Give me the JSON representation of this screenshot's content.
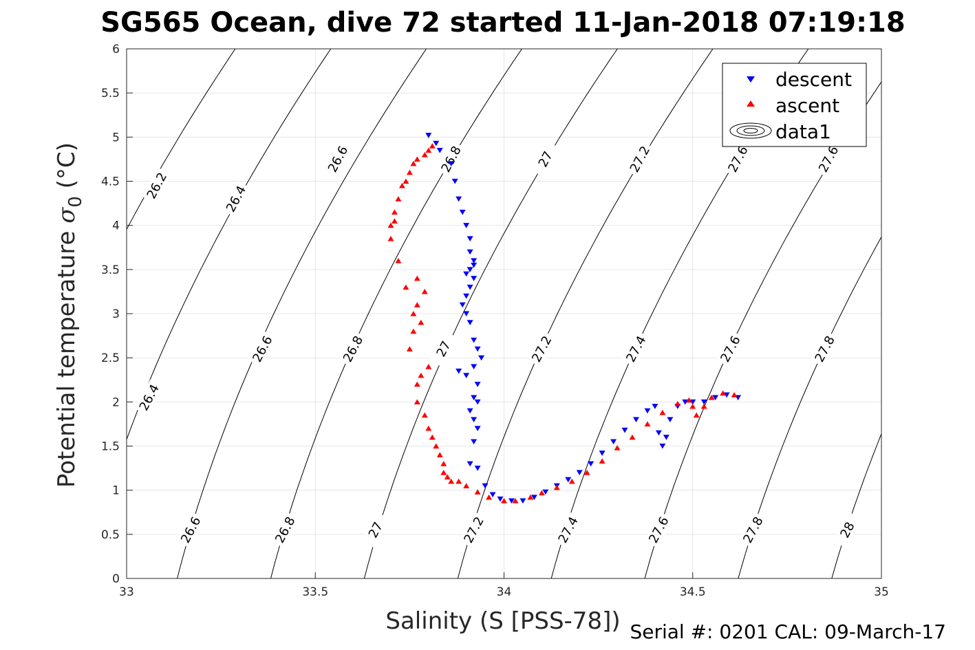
{
  "title": "SG565 Ocean, dive 72 started 11-Jan-2018 07:19:18",
  "footer": "Serial #: 0201  CAL: 09-March-17",
  "chart_data": {
    "type": "scatter",
    "xlabel": "Salinity (S [PSS-78])",
    "ylabel_main": "Potential temperature ",
    "ylabel_symbol": "σ",
    "ylabel_subscript": "0",
    "ylabel_unit": " (°C)",
    "xlim": [
      33,
      35
    ],
    "ylim": [
      0,
      6
    ],
    "xticks": [
      33,
      33.5,
      34,
      34.5,
      35
    ],
    "xtick_labels": [
      "33",
      "33.5",
      "34",
      "34.5",
      "35"
    ],
    "yticks": [
      0,
      0.5,
      1,
      1.5,
      2,
      2.5,
      3,
      3.5,
      4,
      4.5,
      5,
      5.5,
      6
    ],
    "ytick_labels": [
      "0",
      "0.5",
      "1",
      "1.5",
      "2",
      "2.5",
      "3",
      "3.5",
      "4",
      "4.5",
      "5",
      "5.5",
      "6"
    ],
    "grid": true,
    "legend_position": "top-right",
    "legend": [
      "descent",
      "ascent",
      "data1"
    ],
    "series": [
      {
        "name": "descent",
        "color": "#0000ff",
        "marker": "triangle-down",
        "x": [
          33.8,
          33.82,
          33.83,
          33.86,
          33.87,
          33.88,
          33.89,
          33.9,
          33.91,
          33.91,
          33.92,
          33.92,
          33.9,
          33.91,
          33.92,
          33.91,
          33.9,
          33.89,
          33.9,
          33.91,
          33.92,
          33.93,
          33.94,
          33.88,
          33.9,
          33.92,
          33.93,
          33.92,
          33.93,
          33.91,
          33.92,
          33.93,
          33.92,
          33.91,
          33.93,
          33.95,
          33.97,
          33.99,
          34.02,
          34.05,
          34.08,
          34.11,
          34.14,
          34.17,
          34.2,
          34.23,
          34.26,
          34.29,
          34.32,
          34.35,
          34.38,
          34.4,
          34.41,
          34.42,
          34.43,
          34.44,
          34.46,
          34.48,
          34.5,
          34.53,
          34.56,
          34.59,
          34.62
        ],
        "y": [
          5.02,
          4.93,
          4.85,
          4.7,
          4.5,
          4.3,
          4.15,
          4.0,
          3.85,
          3.7,
          3.6,
          3.55,
          3.45,
          3.5,
          3.4,
          3.3,
          3.2,
          3.1,
          3.0,
          2.9,
          2.7,
          2.6,
          2.5,
          2.35,
          2.3,
          2.4,
          2.2,
          2.05,
          2.0,
          1.9,
          1.8,
          1.7,
          1.55,
          1.3,
          1.25,
          1.05,
          0.95,
          0.9,
          0.88,
          0.88,
          0.92,
          0.98,
          1.05,
          1.12,
          1.2,
          1.3,
          1.42,
          1.55,
          1.68,
          1.8,
          1.9,
          1.95,
          1.65,
          1.5,
          1.6,
          1.8,
          1.95,
          2.0,
          2.0,
          2.0,
          2.05,
          2.08,
          2.05
        ]
      },
      {
        "name": "ascent",
        "color": "#ff0000",
        "marker": "triangle-up",
        "x": [
          33.81,
          33.8,
          33.79,
          33.77,
          33.76,
          33.75,
          33.74,
          33.73,
          33.72,
          33.71,
          33.71,
          33.7,
          33.7,
          33.72,
          33.74,
          33.76,
          33.77,
          33.78,
          33.76,
          33.75,
          33.77,
          33.79,
          33.8,
          33.78,
          33.77,
          33.77,
          33.79,
          33.8,
          33.81,
          33.82,
          33.83,
          33.84,
          33.84,
          33.85,
          33.86,
          33.88,
          33.9,
          33.93,
          33.96,
          34.0,
          34.03,
          34.07,
          34.1,
          34.14,
          34.18,
          34.22,
          34.26,
          34.3,
          34.34,
          34.38,
          34.42,
          34.46,
          34.49,
          34.5,
          34.51,
          34.53,
          34.55,
          34.58,
          34.61
        ],
        "y": [
          4.9,
          4.85,
          4.8,
          4.75,
          4.7,
          4.6,
          4.5,
          4.45,
          4.3,
          4.15,
          4.05,
          4.0,
          3.85,
          3.6,
          3.3,
          3.0,
          3.1,
          2.9,
          2.8,
          2.6,
          3.4,
          3.25,
          2.4,
          2.3,
          2.2,
          2.0,
          1.85,
          1.7,
          1.6,
          1.5,
          1.4,
          1.3,
          1.2,
          1.15,
          1.1,
          1.1,
          1.05,
          0.98,
          0.92,
          0.88,
          0.88,
          0.92,
          0.97,
          1.03,
          1.1,
          1.2,
          1.33,
          1.48,
          1.6,
          1.75,
          1.88,
          1.98,
          2.02,
          1.95,
          1.85,
          1.95,
          2.05,
          2.1,
          2.08
        ]
      }
    ],
    "contours": {
      "color": "#000000",
      "levels": [
        26.2,
        26.4,
        26.6,
        26.8,
        27.0,
        27.2,
        27.4,
        27.6,
        27.8,
        28.0
      ],
      "label_text": [
        "26.2",
        "26.4",
        "26.6",
        "26.8",
        "27",
        "27.2",
        "27.4",
        "27.6",
        "27.8",
        "28"
      ],
      "labels": [
        {
          "text": "26.2",
          "s": 33.08,
          "t": 4.45
        },
        {
          "text": "26.4",
          "s": 33.29,
          "t": 4.3
        },
        {
          "text": "26.4",
          "s": 33.06,
          "t": 2.05
        },
        {
          "text": "26.6",
          "s": 33.56,
          "t": 4.75
        },
        {
          "text": "26.6",
          "s": 33.36,
          "t": 2.6
        },
        {
          "text": "26.6",
          "s": 33.17,
          "t": 0.55
        },
        {
          "text": "26.8",
          "s": 33.86,
          "t": 4.75
        },
        {
          "text": "26.8",
          "s": 33.6,
          "t": 2.6
        },
        {
          "text": "26.8",
          "s": 33.42,
          "t": 0.55
        },
        {
          "text": "27",
          "s": 34.11,
          "t": 4.75
        },
        {
          "text": "27",
          "s": 33.84,
          "t": 2.6
        },
        {
          "text": "27",
          "s": 33.66,
          "t": 0.55
        },
        {
          "text": "27.2",
          "s": 34.36,
          "t": 4.75
        },
        {
          "text": "27.2",
          "s": 34.1,
          "t": 2.6
        },
        {
          "text": "27.2",
          "s": 33.92,
          "t": 0.55
        },
        {
          "text": "27.4",
          "s": 34.35,
          "t": 2.6
        },
        {
          "text": "27.4",
          "s": 34.17,
          "t": 0.55
        },
        {
          "text": "27.6",
          "s": 34.62,
          "t": 4.75
        },
        {
          "text": "27.6",
          "s": 34.6,
          "t": 2.6
        },
        {
          "text": "27.6",
          "s": 34.41,
          "t": 0.55
        },
        {
          "text": "27.6",
          "s": 34.86,
          "t": 4.75
        },
        {
          "text": "27.8",
          "s": 34.85,
          "t": 2.6
        },
        {
          "text": "27.8",
          "s": 34.66,
          "t": 0.55
        },
        {
          "text": "28",
          "s": 34.91,
          "t": 0.55
        }
      ]
    }
  }
}
